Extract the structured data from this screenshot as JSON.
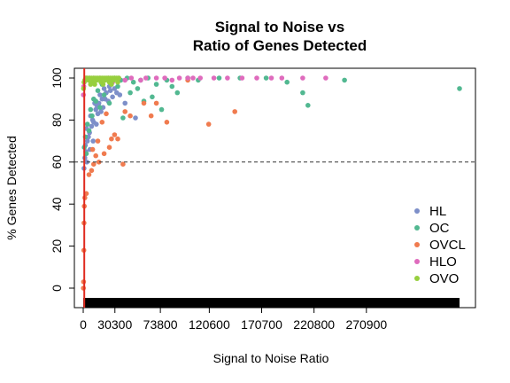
{
  "chart_data": {
    "type": "scatter",
    "title_line1": "Signal to Noise vs",
    "title_line2": "Ratio of Genes Detected",
    "xlabel": "Signal to Noise Ratio",
    "ylabel": "% Genes Detected",
    "xlim": [
      0,
      360000
    ],
    "ylim": [
      -4,
      104
    ],
    "x_ticks": [
      0,
      30300,
      73800,
      120600,
      170700,
      220800,
      270900
    ],
    "x_tick_labels": [
      "0",
      "30300",
      "73800",
      "120600",
      "170700",
      "220800",
      "270900"
    ],
    "y_ticks": [
      0,
      20,
      40,
      60,
      80,
      100
    ],
    "y_tick_labels": [
      "0",
      "20",
      "40",
      "60",
      "80",
      "100"
    ],
    "threshold_y": 60,
    "vertical_line_x": 1000,
    "legend_position": "bottom-right",
    "colors": {
      "HL": "#7d8fc9",
      "OC": "#52b891",
      "OVCL": "#f07b4f",
      "HLO": "#df6bbd",
      "OVO": "#97cf3e",
      "vline": "#e02b20",
      "hline": "#333333"
    },
    "series": [
      {
        "name": "HL",
        "points": [
          [
            800,
            57
          ],
          [
            1500,
            62
          ],
          [
            2500,
            65
          ],
          [
            4000,
            70
          ],
          [
            6000,
            74
          ],
          [
            9000,
            80
          ],
          [
            12000,
            85
          ],
          [
            15000,
            88
          ],
          [
            18000,
            90
          ],
          [
            22000,
            93
          ],
          [
            26000,
            94
          ],
          [
            30000,
            95
          ],
          [
            3000,
            76
          ],
          [
            7000,
            82
          ],
          [
            11000,
            88
          ],
          [
            14000,
            83
          ],
          [
            19000,
            86
          ],
          [
            24000,
            89
          ],
          [
            28000,
            91
          ],
          [
            35000,
            92
          ],
          [
            40000,
            88
          ],
          [
            50000,
            81
          ],
          [
            2000,
            68
          ],
          [
            5000,
            72
          ],
          [
            8000,
            77
          ],
          [
            10000,
            79
          ],
          [
            13000,
            87
          ],
          [
            16000,
            92
          ],
          [
            20000,
            95
          ],
          [
            25000,
            96
          ],
          [
            17000,
            84
          ],
          [
            21000,
            90
          ],
          [
            32000,
            93
          ],
          [
            6500,
            66
          ],
          [
            3500,
            60
          ],
          [
            9500,
            70
          ],
          [
            12500,
            78
          ]
        ]
      },
      {
        "name": "OC",
        "points": [
          [
            1000,
            67
          ],
          [
            2000,
            72
          ],
          [
            4000,
            78
          ],
          [
            7000,
            85
          ],
          [
            10000,
            90
          ],
          [
            14000,
            94
          ],
          [
            18000,
            97
          ],
          [
            24000,
            99
          ],
          [
            30000,
            100
          ],
          [
            36000,
            99
          ],
          [
            42000,
            100
          ],
          [
            48000,
            98
          ],
          [
            55000,
            99
          ],
          [
            62000,
            100
          ],
          [
            70000,
            97
          ],
          [
            80000,
            99
          ],
          [
            90000,
            93
          ],
          [
            100000,
            100
          ],
          [
            110000,
            99
          ],
          [
            130000,
            100
          ],
          [
            150000,
            100
          ],
          [
            175000,
            100
          ],
          [
            195000,
            98
          ],
          [
            210000,
            93
          ],
          [
            215000,
            87
          ],
          [
            250000,
            99
          ],
          [
            360000,
            95
          ],
          [
            25000,
            88
          ],
          [
            33000,
            96
          ],
          [
            45000,
            93
          ],
          [
            52000,
            95
          ],
          [
            66000,
            91
          ],
          [
            75000,
            85
          ],
          [
            85000,
            96
          ],
          [
            3000,
            64
          ],
          [
            5500,
            75
          ],
          [
            8500,
            82
          ],
          [
            12000,
            89
          ],
          [
            16000,
            86
          ],
          [
            20000,
            92
          ],
          [
            38000,
            81
          ],
          [
            58000,
            89
          ]
        ]
      },
      {
        "name": "OVCL",
        "points": [
          [
            200,
            0
          ],
          [
            300,
            3
          ],
          [
            600,
            18
          ],
          [
            800,
            31
          ],
          [
            1000,
            39
          ],
          [
            1500,
            43
          ],
          [
            3000,
            45
          ],
          [
            5500,
            54
          ],
          [
            8000,
            56
          ],
          [
            10000,
            59
          ],
          [
            12000,
            63
          ],
          [
            15000,
            60
          ],
          [
            20000,
            64
          ],
          [
            25000,
            67
          ],
          [
            27000,
            71
          ],
          [
            30000,
            73
          ],
          [
            33000,
            71
          ],
          [
            38000,
            59
          ],
          [
            40000,
            84
          ],
          [
            45000,
            82
          ],
          [
            58000,
            88
          ],
          [
            65000,
            82
          ],
          [
            70000,
            88
          ],
          [
            80000,
            79
          ],
          [
            100000,
            99
          ],
          [
            120000,
            78
          ],
          [
            145000,
            84
          ],
          [
            22000,
            83
          ],
          [
            18000,
            79
          ],
          [
            9000,
            66
          ],
          [
            14000,
            70
          ]
        ]
      },
      {
        "name": "HLO",
        "points": [
          [
            200,
            92
          ],
          [
            500,
            96
          ],
          [
            900,
            98
          ],
          [
            1800,
            99
          ],
          [
            3000,
            100
          ],
          [
            6000,
            100
          ],
          [
            10000,
            100
          ],
          [
            16000,
            100
          ],
          [
            24000,
            100
          ],
          [
            34000,
            100
          ],
          [
            46000,
            100
          ],
          [
            60000,
            100
          ],
          [
            78000,
            100
          ],
          [
            92000,
            100
          ],
          [
            100000,
            100
          ],
          [
            112000,
            100
          ],
          [
            125000,
            100
          ],
          [
            138000,
            100
          ],
          [
            152000,
            100
          ],
          [
            166000,
            100
          ],
          [
            180000,
            100
          ],
          [
            190000,
            100
          ],
          [
            210000,
            100
          ],
          [
            232000,
            100
          ],
          [
            28000,
            98
          ],
          [
            40000,
            99
          ],
          [
            55000,
            99
          ],
          [
            70000,
            100
          ],
          [
            85000,
            99
          ],
          [
            105000,
            100
          ]
        ]
      },
      {
        "name": "OVO",
        "points": [
          [
            300,
            95
          ],
          [
            800,
            98
          ],
          [
            1500,
            99
          ],
          [
            2500,
            100
          ],
          [
            4000,
            100
          ],
          [
            6000,
            100
          ],
          [
            8000,
            100
          ],
          [
            10000,
            100
          ],
          [
            12000,
            100
          ],
          [
            14000,
            100
          ],
          [
            16000,
            100
          ],
          [
            18000,
            100
          ],
          [
            20000,
            100
          ],
          [
            22000,
            100
          ],
          [
            24000,
            100
          ],
          [
            26000,
            100
          ],
          [
            28000,
            100
          ],
          [
            30000,
            100
          ],
          [
            32000,
            100
          ],
          [
            34000,
            100
          ],
          [
            5000,
            99
          ],
          [
            9000,
            98
          ],
          [
            13000,
            99
          ],
          [
            17000,
            98
          ],
          [
            21000,
            99
          ],
          [
            25000,
            98
          ],
          [
            29000,
            99
          ],
          [
            33000,
            98
          ],
          [
            11000,
            97
          ],
          [
            19000,
            97
          ],
          [
            27000,
            97
          ],
          [
            7000,
            97
          ]
        ]
      }
    ]
  }
}
